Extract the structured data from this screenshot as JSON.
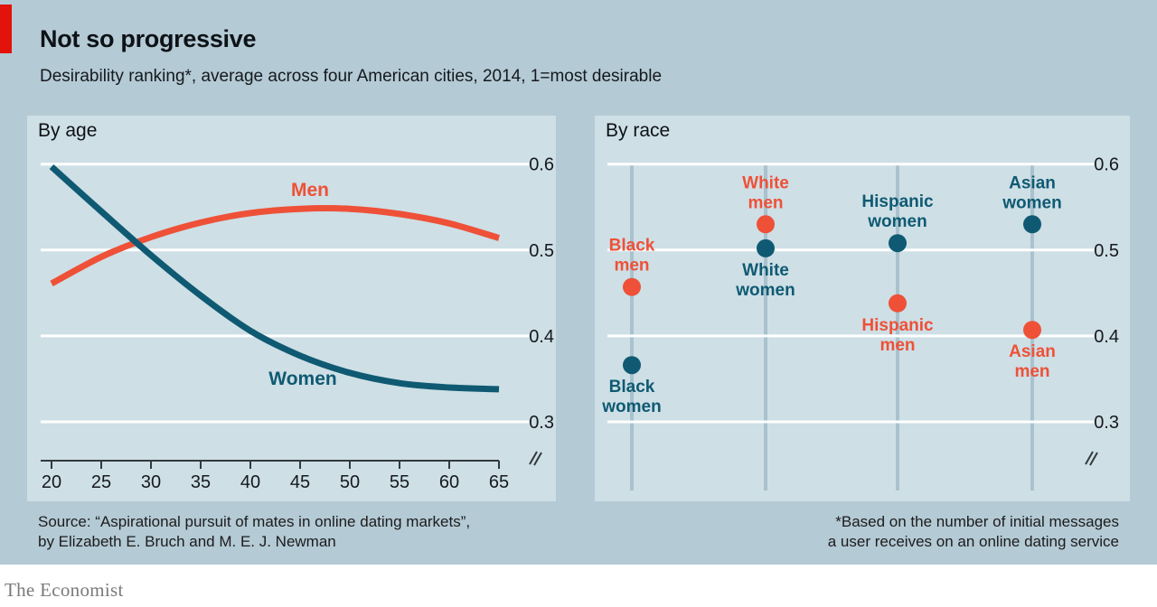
{
  "header": {
    "title": "Not so progressive",
    "subtitle": "Desirability ranking*, average across four American cities, 2014, 1=most desirable"
  },
  "colors": {
    "background": "#b4cad5",
    "panel": "#cedfe6",
    "accent_red": "#e3120b",
    "men": "#ee5137",
    "women": "#0f5a72",
    "grid": "#ffffff",
    "spike": "#a9c2ce",
    "axis": "#33393d",
    "text": "#15191d"
  },
  "chart_data": [
    {
      "type": "line",
      "title": "By age",
      "x": [
        20,
        25,
        30,
        35,
        40,
        45,
        50,
        55,
        60,
        65
      ],
      "series": [
        {
          "name": "Men",
          "color_key": "men",
          "values": [
            0.461,
            0.492,
            0.515,
            0.532,
            0.543,
            0.548,
            0.548,
            0.542,
            0.531,
            0.514
          ]
        },
        {
          "name": "Women",
          "color_key": "women",
          "values": [
            0.597,
            0.545,
            0.494,
            0.447,
            0.406,
            0.377,
            0.357,
            0.345,
            0.34,
            0.338
          ]
        }
      ],
      "yticks": [
        0.6,
        0.5,
        0.4,
        0.3
      ],
      "ylim": [
        0.28,
        0.62
      ],
      "grid": true,
      "axis_break": true,
      "legend_position": "inline-labels"
    },
    {
      "type": "scatter",
      "title": "By race",
      "categories": [
        "Black",
        "White",
        "Hispanic",
        "Asian"
      ],
      "points": [
        {
          "name": "Black men",
          "category": "Black",
          "value": 0.457,
          "color_key": "men",
          "label_lines": [
            "Black",
            "men"
          ],
          "label_position": "above"
        },
        {
          "name": "Black women",
          "category": "Black",
          "value": 0.366,
          "color_key": "women",
          "label_lines": [
            "Black",
            "women"
          ],
          "label_position": "below"
        },
        {
          "name": "White men",
          "category": "White",
          "value": 0.53,
          "color_key": "men",
          "label_lines": [
            "White",
            "men"
          ],
          "label_position": "above"
        },
        {
          "name": "White women",
          "category": "White",
          "value": 0.502,
          "color_key": "women",
          "label_lines": [
            "White",
            "women"
          ],
          "label_position": "below"
        },
        {
          "name": "Hispanic women",
          "category": "Hispanic",
          "value": 0.508,
          "color_key": "women",
          "label_lines": [
            "Hispanic",
            "women"
          ],
          "label_position": "above"
        },
        {
          "name": "Hispanic men",
          "category": "Hispanic",
          "value": 0.438,
          "color_key": "men",
          "label_lines": [
            "Hispanic",
            "men"
          ],
          "label_position": "below"
        },
        {
          "name": "Asian women",
          "category": "Asian",
          "value": 0.53,
          "color_key": "women",
          "label_lines": [
            "Asian",
            "women"
          ],
          "label_position": "above"
        },
        {
          "name": "Asian men",
          "category": "Asian",
          "value": 0.407,
          "color_key": "men",
          "label_lines": [
            "Asian",
            "men"
          ],
          "label_position": "below"
        }
      ],
      "yticks": [
        0.6,
        0.5,
        0.4,
        0.3
      ],
      "ylim": [
        0.28,
        0.62
      ],
      "grid": true,
      "axis_break": true
    }
  ],
  "footer": {
    "source_line1": "Source: “Aspirational pursuit of mates in online dating markets”,",
    "source_line2": "by Elizabeth E. Bruch and M. E. J. Newman",
    "footnote_line1": "*Based on the number of initial messages",
    "footnote_line2": "a user receives on an online dating service",
    "brand": "The Economist"
  }
}
